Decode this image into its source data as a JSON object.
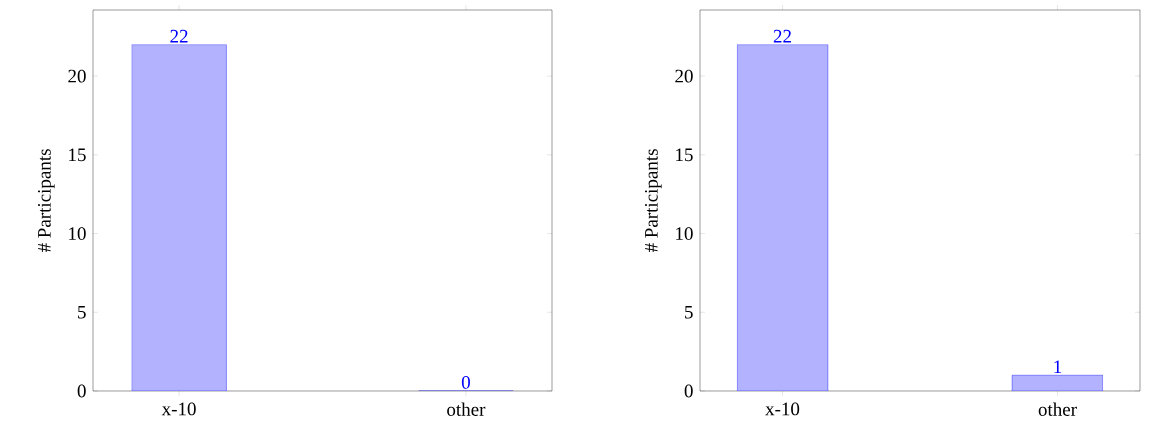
{
  "chart_data": [
    {
      "type": "bar",
      "categories": [
        "x-10",
        "other"
      ],
      "values": [
        22,
        0
      ],
      "color": "#0000ff",
      "ylabel": "# Participants",
      "ylim": [
        0,
        24.2
      ],
      "yticks": [
        0,
        5,
        10,
        15,
        20
      ],
      "data_labels": true
    },
    {
      "type": "bar",
      "categories": [
        "x-10",
        "other"
      ],
      "values": [
        22,
        1
      ],
      "color": "#0000ff",
      "ylabel": "# Participants",
      "ylim": [
        0,
        24.2
      ],
      "yticks": [
        0,
        5,
        10,
        15,
        20
      ],
      "data_labels": true
    }
  ]
}
